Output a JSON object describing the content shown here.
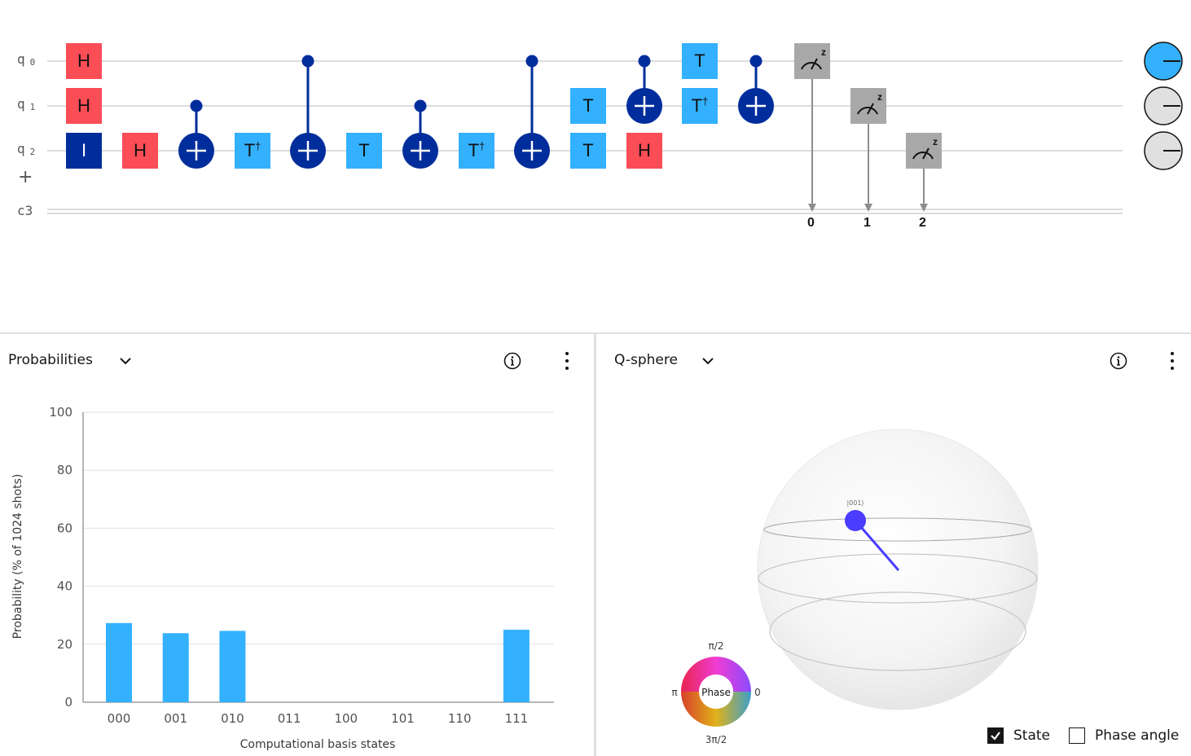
{
  "circuit": {
    "qubits": [
      {
        "label": "q",
        "index": "0"
      },
      {
        "label": "q",
        "index": "1"
      },
      {
        "label": "q",
        "index": "2"
      }
    ],
    "classical_register": "c3",
    "add_wire": "+",
    "gates": {
      "h": "H",
      "i": "I",
      "t": "T",
      "tdg": "T",
      "dagger": "†",
      "measure_z": "z"
    },
    "classical_bits": [
      "0",
      "1",
      "2"
    ],
    "colors": {
      "h": "#fa4d56",
      "t": "#33b1ff",
      "i": "#002d9c",
      "cnot": "#002d9c",
      "measure": "#a8a8a8",
      "phase_disk_on": "#33b1ff",
      "phase_disk_off": "#e0e0e0"
    }
  },
  "probabilities": {
    "title": "Probabilities",
    "icons": {
      "dropdown": "chevron-down-icon",
      "info": "info-icon",
      "menu": "overflow-menu-icon"
    }
  },
  "chart_data": {
    "type": "bar",
    "categories": [
      "000",
      "001",
      "010",
      "011",
      "100",
      "101",
      "110",
      "111"
    ],
    "values": [
      27.3,
      23.8,
      24.6,
      0,
      0,
      0,
      0,
      25
    ],
    "xlabel": "Computational basis states",
    "ylabel": "Probability (% of 1024 shots)",
    "ylim": [
      0,
      100
    ],
    "yticks": [
      0,
      20,
      40,
      60,
      80,
      100
    ],
    "color": "#33b1ff"
  },
  "qsphere": {
    "title": "Q-sphere",
    "state_label": "|001⟩",
    "phase_wheel": {
      "center": "Phase",
      "top": "π/2",
      "left": "π",
      "right": "0",
      "bottom": "3π/2"
    },
    "state_checkbox": {
      "label": "State",
      "checked": true
    },
    "phase_checkbox": {
      "label": "Phase angle",
      "checked": false
    },
    "state_color": "#4b3cff"
  }
}
